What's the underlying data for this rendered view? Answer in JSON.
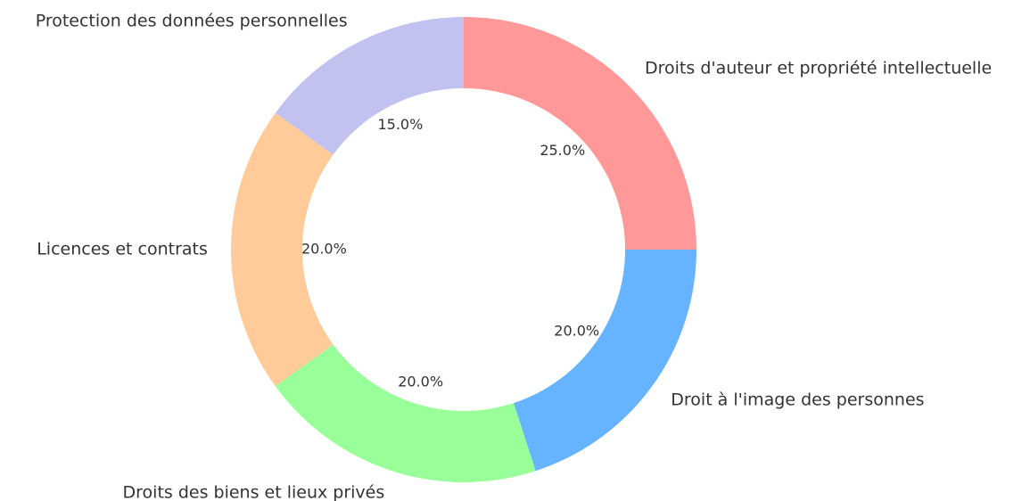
{
  "chart_data": {
    "type": "donut",
    "categories": [
      "Droits d'auteur et propriété intellectuelle",
      "Droit à l'image des personnes",
      "Droits des biens et lieux privés",
      "Licences et contrats",
      "Protection des données personnelles"
    ],
    "values": [
      25,
      20,
      20,
      20,
      15
    ],
    "value_labels": [
      "25.0%",
      "20.0%",
      "20.0%",
      "20.0%",
      "15.0%"
    ],
    "colors": [
      "#ff9999",
      "#66b3ff",
      "#99ff99",
      "#ffcc99",
      "#c2c2f0"
    ]
  }
}
